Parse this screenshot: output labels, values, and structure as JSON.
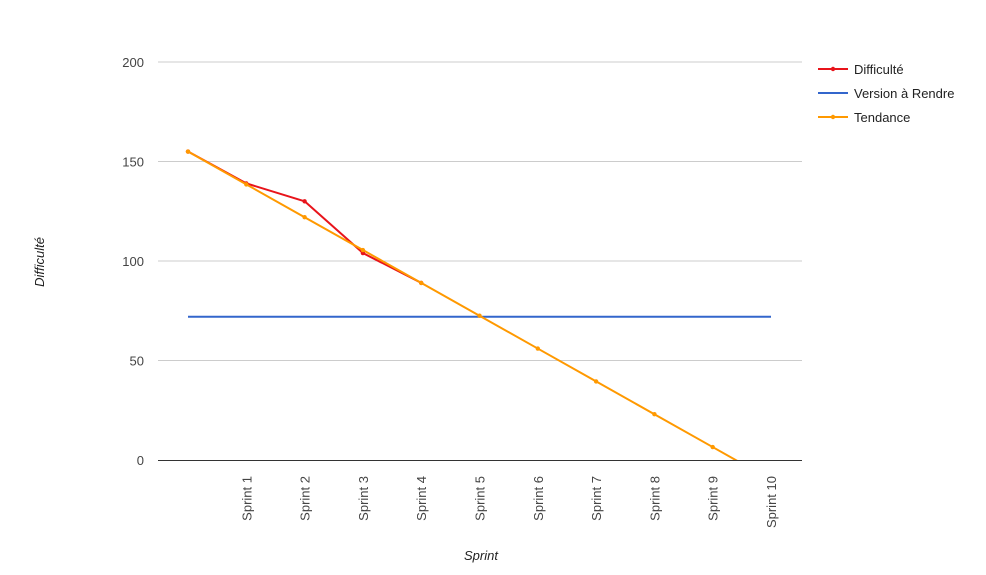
{
  "chart_data": {
    "type": "line",
    "xlabel": "Sprint",
    "ylabel": "Difficulté",
    "ylim": [
      0,
      200
    ],
    "yticks": [
      "0",
      "50",
      "100",
      "150",
      "200"
    ],
    "categories": [
      "",
      "Sprint 1",
      "Sprint 2",
      "Sprint 3",
      "Sprint 4",
      "Sprint 5",
      "Sprint 6",
      "Sprint 7",
      "Sprint 8",
      "Sprint 9",
      "Sprint 10"
    ],
    "grid": true,
    "legend_position": "right",
    "series": [
      {
        "name": "Difficulté",
        "color": "#e8141b",
        "markers": true,
        "values": [
          155,
          139,
          130,
          104,
          89,
          null,
          null,
          null,
          null,
          null,
          null
        ]
      },
      {
        "name": "Version à Rendre",
        "color": "#3366cc",
        "markers": false,
        "values": [
          72,
          72,
          72,
          72,
          72,
          72,
          72,
          72,
          72,
          72,
          72
        ]
      },
      {
        "name": "Tendance",
        "color": "#ff9900",
        "markers": true,
        "values": [
          155,
          138.5,
          122,
          105.5,
          89,
          72.5,
          56,
          39.5,
          23,
          6.5,
          -10
        ]
      }
    ]
  }
}
